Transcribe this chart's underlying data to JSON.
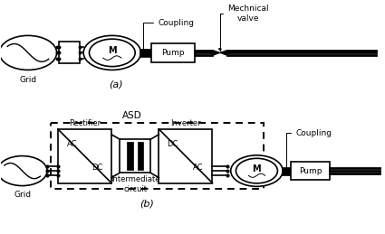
{
  "bg_color": "#ffffff",
  "title_a": "(a)",
  "title_b": "(b)",
  "label_grid_a": "Grid",
  "label_grid_b": "Grid",
  "label_coupling_a": "Coupling",
  "label_coupling_b": "Coupling",
  "label_mech_valve": "Mechnical\nvalve",
  "label_pump_a": "Pump",
  "label_pump_b": "Pump",
  "label_M": "M",
  "label_ASD": "ASD",
  "label_rectifier": "Rectifier",
  "label_inverter": "Inverter",
  "label_intermediate": "Intermediate\ncircuit",
  "label_AC_rect": "AC",
  "label_DC_rect": "DC",
  "label_DC_inv": "DC",
  "label_AC_inv": "AC",
  "fig_w": 4.25,
  "fig_h": 2.59,
  "dpi": 100
}
